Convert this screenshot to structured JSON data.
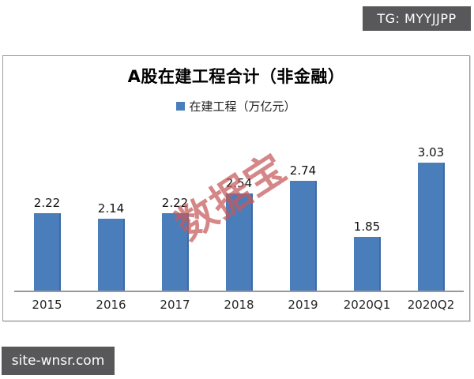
{
  "badges": {
    "tg": "TG: MYYJJPP",
    "site": "site-wnsr.com"
  },
  "chart_data": {
    "type": "bar",
    "title": "A股在建工程合计（非金融）",
    "legend": [
      {
        "label": "在建工程（万亿元）",
        "color": "#4a7ebb"
      }
    ],
    "legend_position": "top",
    "categories": [
      "2015",
      "2016",
      "2017",
      "2018",
      "2019",
      "2020Q1",
      "2020Q2"
    ],
    "values": [
      2.22,
      2.14,
      2.22,
      2.54,
      2.74,
      1.85,
      3.03
    ],
    "ylim": [
      1.0,
      3.7
    ],
    "grid": false,
    "bar_color": "#4a7ebb",
    "watermark": {
      "text": "数据宝",
      "color": "#c65a5a"
    }
  }
}
